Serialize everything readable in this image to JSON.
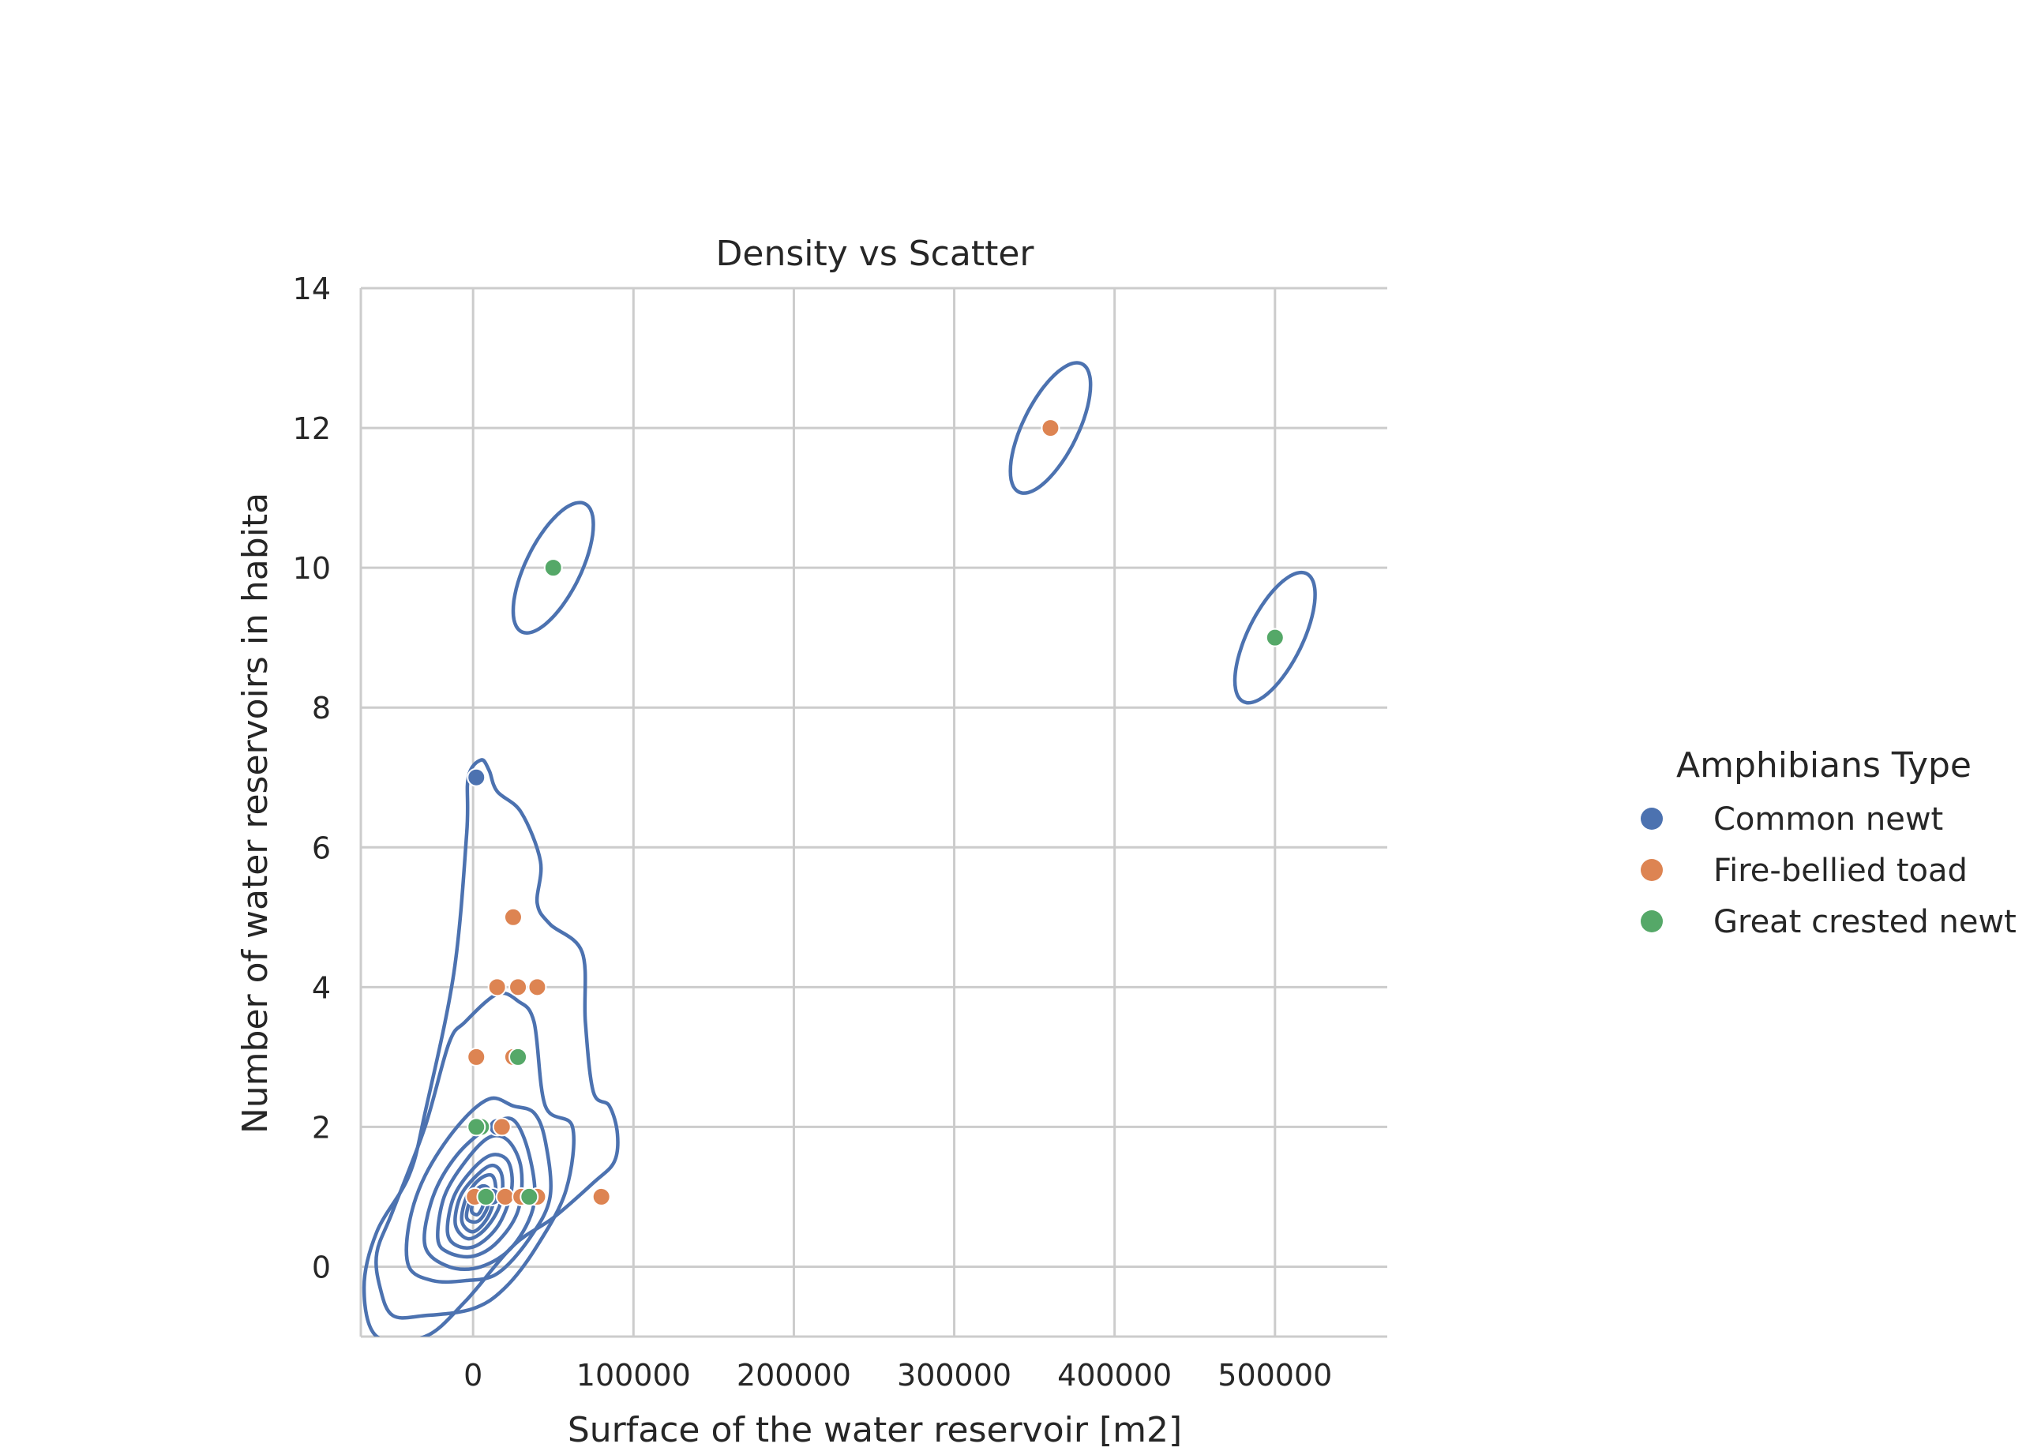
{
  "chart_data": {
    "type": "scatter",
    "title": "Density vs Scatter",
    "xlabel": "Surface of the water reservoir [m2]",
    "ylabel": "Number of water reservoirs in habita",
    "xlim": [
      -70000,
      570000
    ],
    "ylim": [
      -1,
      14
    ],
    "xticks": [
      0,
      100000,
      200000,
      300000,
      400000,
      500000
    ],
    "xtick_labels": [
      "0",
      "100000",
      "200000",
      "300000",
      "400000",
      "500000"
    ],
    "yticks": [
      0,
      2,
      4,
      6,
      8,
      10,
      12,
      14
    ],
    "ytick_labels": [
      "0",
      "2",
      "4",
      "6",
      "8",
      "10",
      "12",
      "14"
    ],
    "grid": true,
    "legend_position": "right",
    "legend": {
      "title": "Amphibians Type",
      "entries": [
        "Common newt",
        "Fire-bellied toad",
        "Great crested newt"
      ]
    },
    "series": [
      {
        "name": "Common newt",
        "color": "#4c72b0",
        "points": [
          [
            2000,
            7
          ],
          [
            15000,
            2
          ],
          [
            12000,
            1
          ]
        ]
      },
      {
        "name": "Fire-bellied toad",
        "color": "#dd8452",
        "points": [
          [
            360000,
            12
          ],
          [
            25000,
            5
          ],
          [
            15000,
            4
          ],
          [
            28000,
            4
          ],
          [
            40000,
            4
          ],
          [
            2000,
            3
          ],
          [
            25000,
            3
          ],
          [
            18000,
            2
          ],
          [
            1000,
            1
          ],
          [
            40000,
            1
          ],
          [
            80000,
            1
          ],
          [
            20000,
            1
          ],
          [
            30000,
            1
          ]
        ]
      },
      {
        "name": "Great crested newt",
        "color": "#55a868",
        "points": [
          [
            50000,
            10
          ],
          [
            500000,
            9
          ],
          [
            28000,
            3
          ],
          [
            5000,
            2
          ],
          [
            2000,
            2
          ],
          [
            8000,
            1
          ],
          [
            35000,
            1
          ]
        ]
      }
    ],
    "density_contours": {
      "color": "#4c72b0",
      "levels": [
        {
          "label": "outer",
          "points": [
            [
              -60000,
              -1
            ],
            [
              -68000,
              -0.3
            ],
            [
              -60000,
              0.5
            ],
            [
              -40000,
              1.3
            ],
            [
              -30000,
              2.2
            ],
            [
              -12000,
              4.2
            ],
            [
              -4000,
              6.2
            ],
            [
              -3000,
              7
            ],
            [
              5000,
              7.25
            ],
            [
              10000,
              7.1
            ],
            [
              15000,
              6.8
            ],
            [
              30000,
              6.5
            ],
            [
              42000,
              5.8
            ],
            [
              40000,
              5.2
            ],
            [
              48000,
              4.9
            ],
            [
              68000,
              4.5
            ],
            [
              70000,
              3.5
            ],
            [
              75000,
              2.5
            ],
            [
              85000,
              2.3
            ],
            [
              90000,
              1.9
            ],
            [
              88000,
              1.5
            ],
            [
              75000,
              1.2
            ],
            [
              50000,
              0.7
            ],
            [
              25000,
              0.3
            ],
            [
              -5000,
              -0.5
            ],
            [
              -30000,
              -1
            ]
          ]
        },
        {
          "label": "second",
          "points": [
            [
              -58000,
              -0.3
            ],
            [
              -60000,
              0.2
            ],
            [
              -50000,
              0.8
            ],
            [
              -30000,
              2
            ],
            [
              -15000,
              3.2
            ],
            [
              -5000,
              3.5
            ],
            [
              15000,
              3.9
            ],
            [
              28000,
              3.8
            ],
            [
              38000,
              3.5
            ],
            [
              45000,
              2.3
            ],
            [
              62000,
              2
            ],
            [
              58000,
              1.1
            ],
            [
              40000,
              0.3
            ],
            [
              20000,
              -0.3
            ],
            [
              0,
              -0.6
            ],
            [
              -30000,
              -0.7
            ],
            [
              -50000,
              -0.7
            ]
          ]
        },
        {
          "label": "third",
          "points": [
            [
              -40000,
              0
            ],
            [
              -40000,
              0.6
            ],
            [
              -30000,
              1.3
            ],
            [
              -10000,
              2
            ],
            [
              10000,
              2.4
            ],
            [
              25000,
              2.3
            ],
            [
              38000,
              2.2
            ],
            [
              45000,
              1.8
            ],
            [
              48000,
              1
            ],
            [
              35000,
              0.4
            ],
            [
              15000,
              -0.1
            ],
            [
              -5000,
              -0.2
            ],
            [
              -25000,
              -0.2
            ]
          ]
        },
        {
          "label": "level-4",
          "points": [
            [
              -30000,
              0.3
            ],
            [
              -25000,
              1
            ],
            [
              -10000,
              1.6
            ],
            [
              10000,
              2
            ],
            [
              25000,
              2.1
            ],
            [
              35000,
              1.6
            ],
            [
              38000,
              0.9
            ],
            [
              25000,
              0.3
            ],
            [
              5000,
              0
            ],
            [
              -15000,
              0
            ]
          ]
        },
        {
          "label": "level-5",
          "points": [
            [
              -22000,
              0.4
            ],
            [
              -18000,
              1
            ],
            [
              -5000,
              1.5
            ],
            [
              10000,
              1.85
            ],
            [
              22000,
              1.8
            ],
            [
              30000,
              1.4
            ],
            [
              28000,
              0.8
            ],
            [
              15000,
              0.35
            ],
            [
              0,
              0.15
            ],
            [
              -15000,
              0.2
            ]
          ]
        },
        {
          "label": "level-6",
          "points": [
            [
              -16000,
              0.5
            ],
            [
              -12000,
              1
            ],
            [
              0,
              1.4
            ],
            [
              12000,
              1.6
            ],
            [
              22000,
              1.5
            ],
            [
              24000,
              1.1
            ],
            [
              16000,
              0.6
            ],
            [
              2000,
              0.3
            ],
            [
              -10000,
              0.3
            ]
          ]
        },
        {
          "label": "level-7",
          "points": [
            [
              -11000,
              0.6
            ],
            [
              -8000,
              1
            ],
            [
              2000,
              1.3
            ],
            [
              12000,
              1.45
            ],
            [
              18000,
              1.3
            ],
            [
              17000,
              0.9
            ],
            [
              8000,
              0.55
            ],
            [
              -3000,
              0.4
            ]
          ]
        },
        {
          "label": "level-8",
          "points": [
            [
              -7000,
              0.65
            ],
            [
              -4000,
              1
            ],
            [
              4000,
              1.25
            ],
            [
              12000,
              1.3
            ],
            [
              14000,
              1.05
            ],
            [
              9000,
              0.7
            ],
            [
              0,
              0.5
            ]
          ]
        },
        {
          "label": "level-9",
          "points": [
            [
              -4000,
              0.7
            ],
            [
              -1000,
              1
            ],
            [
              5000,
              1.15
            ],
            [
              10000,
              1.1
            ],
            [
              9000,
              0.85
            ],
            [
              3000,
              0.65
            ]
          ]
        },
        {
          "label": "level-10",
          "points": [
            [
              -1000,
              0.8
            ],
            [
              1500,
              1
            ],
            [
              5500,
              1.05
            ],
            [
              6500,
              0.9
            ],
            [
              3000,
              0.75
            ]
          ]
        },
        {
          "label": "ellipse-12",
          "ellipse": {
            "cx": 360000,
            "cy": 12,
            "rx": 25000,
            "ry": 0.7,
            "skew": 0.55
          }
        },
        {
          "label": "ellipse-10",
          "ellipse": {
            "cx": 50000,
            "cy": 10,
            "rx": 25000,
            "ry": 0.7,
            "skew": 0.55
          }
        },
        {
          "label": "ellipse-9",
          "ellipse": {
            "cx": 500000,
            "cy": 9,
            "rx": 25000,
            "ry": 0.7,
            "skew": 0.55
          }
        }
      ]
    }
  }
}
